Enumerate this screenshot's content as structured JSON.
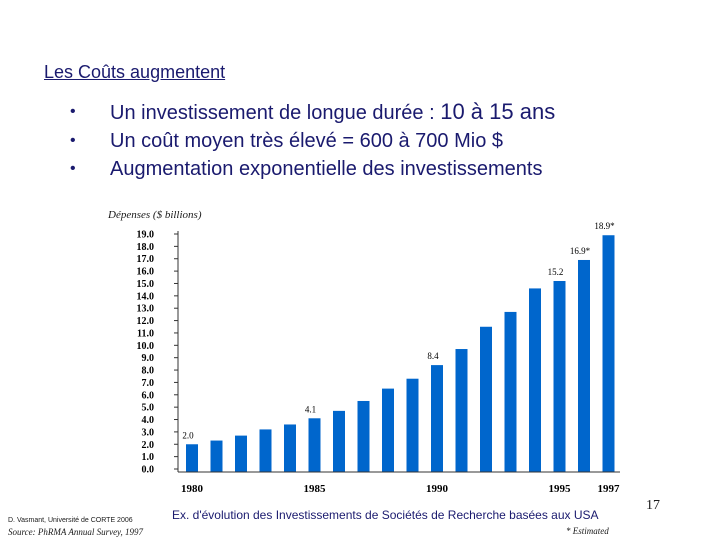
{
  "slide": {
    "title": "Les Coûts augmentent",
    "bullets": [
      {
        "text": "Un investissement de longue durée : ",
        "emph": "10 à 15 ans"
      },
      {
        "text": "Un coût moyen très élevé = 600 à 700 Mio $",
        "emph": ""
      },
      {
        "text": "Augmentation exponentielle des investissements",
        "emph": ""
      }
    ],
    "bullet_glyph": "•",
    "credit": "D. Vasmant, Université de CORTE 2006",
    "source": "Source:  PhRMA Annual Survey, 1997",
    "caption": "Ex. d'évolution des Investissements de Sociétés de Recherche basées aux USA",
    "estimated_note": "* Estimated",
    "page_number": "17"
  },
  "colors": {
    "bar": "#0066cc",
    "accent": "#1a1a6e"
  },
  "chart_data": {
    "type": "bar",
    "title": "Dépenses ($ billions)",
    "xlabel": "",
    "ylabel": "Dépenses ($ billions)",
    "ylim": [
      0,
      19
    ],
    "ytick_labels": [
      "19.0",
      "18.0",
      "17.0",
      "16.0",
      "15.0",
      "14.0",
      "13.0",
      "12.0",
      "11.0",
      "10.0",
      "9.0",
      "8.0",
      "7.0",
      "6.0",
      "5.0",
      "4.0",
      "3.0",
      "2.0",
      "1.0",
      "0.0"
    ],
    "categories": [
      "1980",
      "1981",
      "1982",
      "1983",
      "1984",
      "1985",
      "1986",
      "1987",
      "1988",
      "1989",
      "1990",
      "1991",
      "1992",
      "1993",
      "1994",
      "1995",
      "1996",
      "1997"
    ],
    "x_tick_labels": [
      "1980",
      "1985",
      "1990",
      "1995",
      "1997"
    ],
    "values": [
      2.0,
      2.3,
      2.7,
      3.2,
      3.6,
      4.1,
      4.7,
      5.5,
      6.5,
      7.3,
      8.4,
      9.7,
      11.5,
      12.7,
      14.6,
      15.2,
      16.9,
      18.9
    ],
    "data_labels": [
      {
        "index": 0,
        "text": "2.0"
      },
      {
        "index": 5,
        "text": "4.1"
      },
      {
        "index": 10,
        "text": "8.4"
      },
      {
        "index": 15,
        "text": "15.2"
      },
      {
        "index": 16,
        "text": "16.9*"
      },
      {
        "index": 17,
        "text": "18.9*"
      }
    ]
  }
}
